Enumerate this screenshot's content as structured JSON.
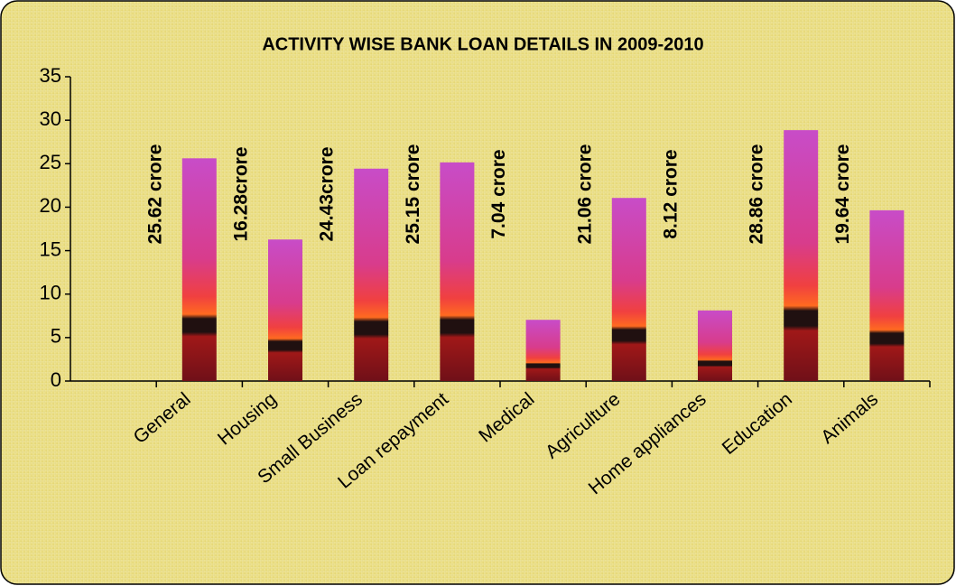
{
  "chart_data": {
    "type": "bar",
    "title": "ACTIVITY WISE BANK LOAN DETAILS IN 2009-2010",
    "categories": [
      "General",
      "Housing",
      "Small Business",
      "Loan repayment",
      "Medical",
      "Agriculture",
      "Home appliances",
      "Education",
      "Animals"
    ],
    "values": [
      25.62,
      16.28,
      24.43,
      25.15,
      7.04,
      21.06,
      8.12,
      28.86,
      19.64
    ],
    "value_labels": [
      "25.62 crore",
      "16.28crore",
      "24.43crore",
      "25.15 crore",
      "7.04 crore",
      "21.06 crore",
      "8.12 crore",
      "28.86 crore",
      "19.64 crore"
    ],
    "ylim": [
      0,
      35
    ],
    "yticks": [
      0,
      5,
      10,
      15,
      20,
      25,
      30,
      35
    ]
  }
}
